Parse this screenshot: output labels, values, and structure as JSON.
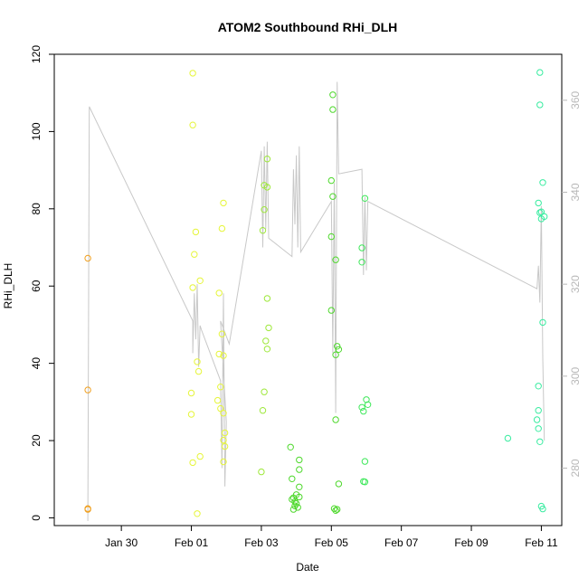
{
  "chart_data": {
    "type": "scatter",
    "title": "ATOM2 Southbound RHi_DLH",
    "xlabel": "Date",
    "ylabel": "RHi_DLH",
    "xlim": [
      "2020-01-28T02:00",
      "2020-02-11T14:00"
    ],
    "ylim": [
      -2,
      120
    ],
    "y2lim": [
      267.5,
      370
    ],
    "grid": false,
    "x_ticks": [
      {
        "value": "2020-01-30T00:00",
        "label": "Jan 30"
      },
      {
        "value": "2020-02-01T00:00",
        "label": "Feb 01"
      },
      {
        "value": "2020-02-03T00:00",
        "label": "Feb 03"
      },
      {
        "value": "2020-02-05T00:00",
        "label": "Feb 05"
      },
      {
        "value": "2020-02-07T00:00",
        "label": "Feb 07"
      },
      {
        "value": "2020-02-09T00:00",
        "label": "Feb 09"
      },
      {
        "value": "2020-02-11T00:00",
        "label": "Feb 11"
      }
    ],
    "y_ticks": [
      0,
      20,
      40,
      60,
      80,
      100,
      120
    ],
    "y2_ticks": [
      280,
      300,
      320,
      340,
      360
    ],
    "series": [
      {
        "color": "#f0a020",
        "points": [
          [
            "2020-01-29T01:00",
            67.2
          ],
          [
            "2020-01-29T01:00",
            33.1
          ],
          [
            "2020-01-29T01:00",
            2.4
          ],
          [
            "2020-01-29T01:00",
            2.2
          ]
        ]
      },
      {
        "color": "#e6f53a",
        "points": [
          [
            "2020-02-01T01:00",
            115.1
          ],
          [
            "2020-02-01T01:00",
            101.7
          ],
          [
            "2020-02-01T03:00",
            74.0
          ],
          [
            "2020-02-01T02:00",
            68.2
          ],
          [
            "2020-02-01T06:00",
            61.4
          ],
          [
            "2020-02-01T01:00",
            59.6
          ],
          [
            "2020-02-01T04:00",
            40.4
          ],
          [
            "2020-02-01T05:00",
            37.9
          ],
          [
            "2020-02-01T00:00",
            32.3
          ],
          [
            "2020-02-01T00:00",
            26.8
          ],
          [
            "2020-02-01T06:00",
            15.9
          ],
          [
            "2020-02-01T01:00",
            14.3
          ],
          [
            "2020-02-01T04:00",
            1.1
          ],
          [
            "2020-02-01T22:00",
            81.5
          ],
          [
            "2020-02-01T21:00",
            74.9
          ],
          [
            "2020-02-01T19:00",
            58.2
          ],
          [
            "2020-02-01T21:00",
            47.6
          ],
          [
            "2020-02-01T22:00",
            42.0
          ],
          [
            "2020-02-01T19:00",
            42.4
          ],
          [
            "2020-02-01T20:00",
            33.9
          ],
          [
            "2020-02-01T18:00",
            30.4
          ],
          [
            "2020-02-01T20:00",
            28.3
          ],
          [
            "2020-02-01T22:00",
            27.1
          ],
          [
            "2020-02-01T23:00",
            22.0
          ],
          [
            "2020-02-01T22:00",
            20.1
          ],
          [
            "2020-02-01T23:00",
            18.5
          ],
          [
            "2020-02-01T22:00",
            14.5
          ]
        ]
      },
      {
        "color": "#9ee83a",
        "points": [
          [
            "2020-02-03T04:00",
            92.9
          ],
          [
            "2020-02-03T02:00",
            86.1
          ],
          [
            "2020-02-03T04:00",
            85.6
          ],
          [
            "2020-02-03T02:00",
            79.8
          ],
          [
            "2020-02-03T01:00",
            74.4
          ],
          [
            "2020-02-03T04:00",
            56.8
          ],
          [
            "2020-02-03T05:00",
            49.2
          ],
          [
            "2020-02-03T03:00",
            45.8
          ],
          [
            "2020-02-03T04:00",
            43.7
          ],
          [
            "2020-02-03T02:00",
            32.6
          ],
          [
            "2020-02-03T01:00",
            27.8
          ],
          [
            "2020-02-03T00:00",
            11.9
          ]
        ]
      },
      {
        "color": "#4ed82c",
        "points": [
          [
            "2020-02-03T20:00",
            18.3
          ],
          [
            "2020-02-04T02:00",
            15.0
          ],
          [
            "2020-02-04T02:00",
            12.5
          ],
          [
            "2020-02-03T21:00",
            10.1
          ],
          [
            "2020-02-04T02:00",
            8.0
          ],
          [
            "2020-02-04T00:00",
            6.0
          ],
          [
            "2020-02-04T02:00",
            5.4
          ],
          [
            "2020-02-03T22:00",
            5.2
          ],
          [
            "2020-02-03T21:00",
            4.8
          ],
          [
            "2020-02-03T23:00",
            4.2
          ],
          [
            "2020-02-04T00:00",
            3.7
          ],
          [
            "2020-02-03T23:00",
            3.1
          ],
          [
            "2020-02-04T01:00",
            2.7
          ],
          [
            "2020-02-03T22:00",
            2.2
          ],
          [
            "2020-02-05T01:00",
            109.5
          ],
          [
            "2020-02-05T01:00",
            105.7
          ],
          [
            "2020-02-05T00:00",
            87.3
          ],
          [
            "2020-02-05T01:00",
            83.2
          ],
          [
            "2020-02-05T00:00",
            72.8
          ],
          [
            "2020-02-05T03:00",
            66.8
          ],
          [
            "2020-02-05T00:00",
            53.7
          ],
          [
            "2020-02-05T04:00",
            44.4
          ],
          [
            "2020-02-05T05:00",
            43.6
          ],
          [
            "2020-02-05T03:00",
            42.2
          ],
          [
            "2020-02-05T03:00",
            25.4
          ],
          [
            "2020-02-05T05:00",
            8.8
          ],
          [
            "2020-02-05T02:00",
            2.4
          ],
          [
            "2020-02-05T04:00",
            2.2
          ],
          [
            "2020-02-05T03:00",
            1.9
          ]
        ]
      },
      {
        "color": "#3ee85a",
        "points": [
          [
            "2020-02-05T23:00",
            82.7
          ],
          [
            "2020-02-05T21:00",
            69.9
          ],
          [
            "2020-02-05T21:00",
            66.2
          ],
          [
            "2020-02-06T00:00",
            30.6
          ],
          [
            "2020-02-06T01:00",
            29.3
          ],
          [
            "2020-02-05T21:00",
            28.6
          ],
          [
            "2020-02-05T22:00",
            27.6
          ],
          [
            "2020-02-05T23:00",
            14.6
          ],
          [
            "2020-02-05T23:00",
            9.3
          ],
          [
            "2020-02-05T22:00",
            9.4
          ]
        ]
      },
      {
        "color": "#38eca0",
        "points": [
          [
            "2020-02-10T01:00",
            20.6
          ],
          [
            "2020-02-10T23:00",
            115.3
          ],
          [
            "2020-02-10T23:00",
            106.9
          ],
          [
            "2020-02-11T01:00",
            86.8
          ],
          [
            "2020-02-10T22:00",
            81.5
          ],
          [
            "2020-02-11T00:00",
            79.2
          ],
          [
            "2020-02-10T23:00",
            79.0
          ],
          [
            "2020-02-11T02:00",
            78.0
          ],
          [
            "2020-02-11T00:00",
            77.4
          ],
          [
            "2020-02-11T01:00",
            50.6
          ],
          [
            "2020-02-10T22:00",
            34.1
          ],
          [
            "2020-02-10T22:00",
            27.8
          ],
          [
            "2020-02-10T21:00",
            25.4
          ],
          [
            "2020-02-10T22:00",
            23.1
          ],
          [
            "2020-02-10T23:00",
            19.7
          ],
          [
            "2020-02-11T00:00",
            3.0
          ],
          [
            "2020-02-11T01:00",
            2.3
          ]
        ]
      }
    ],
    "line_series": {
      "color": "#c8c8c8",
      "axis": "right",
      "points": [
        [
          "2020-01-29T01:00",
          268.5
        ],
        [
          "2020-01-29T02:00",
          358.6
        ],
        [
          "2020-02-01T01:00",
          312.0
        ],
        [
          "2020-02-01T01:00",
          305.0
        ],
        [
          "2020-02-01T02:00",
          318.0
        ],
        [
          "2020-02-01T03:00",
          308.0
        ],
        [
          "2020-02-01T04:00",
          320.0
        ],
        [
          "2020-02-01T05:00",
          302.0
        ],
        [
          "2020-02-01T06:00",
          311.0
        ],
        [
          "2020-02-01T07:00",
          310.0
        ],
        [
          "2020-02-01T20:00",
          299.0
        ],
        [
          "2020-02-01T21:00",
          280.0
        ],
        [
          "2020-02-01T22:00",
          318.0
        ],
        [
          "2020-02-01T23:00",
          276.0
        ],
        [
          "2020-02-02T00:00",
          290.0
        ],
        [
          "2020-02-01T20:00",
          312.0
        ],
        [
          "2020-02-02T02:00",
          307.0
        ],
        [
          "2020-02-03T00:00",
          349.0
        ],
        [
          "2020-02-03T01:00",
          328.0
        ],
        [
          "2020-02-03T02:00",
          350.0
        ],
        [
          "2020-02-03T03:00",
          332.0
        ],
        [
          "2020-02-03T04:00",
          351.0
        ],
        [
          "2020-02-03T05:00",
          330.0
        ],
        [
          "2020-02-03T21:00",
          326.0
        ],
        [
          "2020-02-03T22:00",
          345.0
        ],
        [
          "2020-02-03T23:00",
          333.0
        ],
        [
          "2020-02-04T00:00",
          348.0
        ],
        [
          "2020-02-04T01:00",
          328.0
        ],
        [
          "2020-02-04T02:00",
          350.0
        ],
        [
          "2020-02-04T03:00",
          327.0
        ],
        [
          "2020-02-05T00:00",
          338.0
        ],
        [
          "2020-02-05T01:00",
          305.0
        ],
        [
          "2020-02-05T02:00",
          342.0
        ],
        [
          "2020-02-05T03:00",
          292.0
        ],
        [
          "2020-02-05T04:00",
          364.0
        ],
        [
          "2020-02-05T05:00",
          344.0
        ],
        [
          "2020-02-05T21:00",
          345.0
        ],
        [
          "2020-02-05T22:00",
          322.0
        ],
        [
          "2020-02-05T23:00",
          339.0
        ],
        [
          "2020-02-06T00:00",
          323.0
        ],
        [
          "2020-02-06T01:00",
          338.0
        ],
        [
          "2020-02-10T21:00",
          319.0
        ],
        [
          "2020-02-10T22:00",
          324.0
        ],
        [
          "2020-02-10T23:00",
          316.0
        ],
        [
          "2020-02-11T00:00",
          337.0
        ],
        [
          "2020-02-11T01:00",
          304.0
        ],
        [
          "2020-02-11T02:00",
          286.0
        ]
      ]
    }
  }
}
